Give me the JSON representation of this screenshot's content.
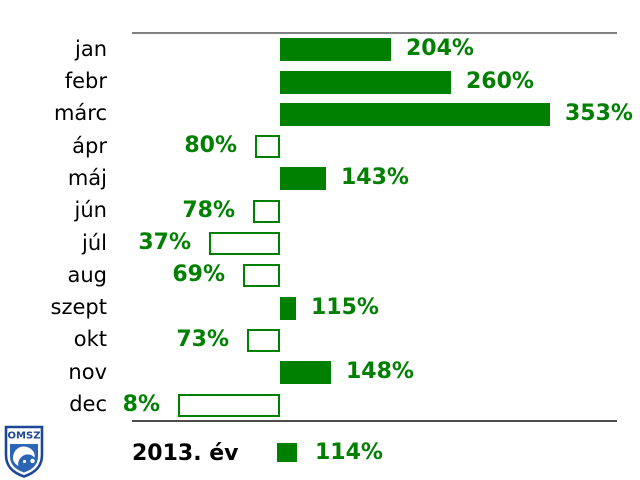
{
  "chart_data": {
    "type": "bar",
    "orientation": "horizontal",
    "title": "",
    "categories": [
      "jan",
      "febr",
      "márc",
      "ápr",
      "máj",
      "jún",
      "júl",
      "aug",
      "szept",
      "okt",
      "nov",
      "dec"
    ],
    "values": [
      204,
      260,
      353,
      80,
      143,
      78,
      37,
      69,
      115,
      73,
      148,
      8
    ],
    "value_labels": [
      "204%",
      "260%",
      "353%",
      "80%",
      "143%",
      "78%",
      "37%",
      "69%",
      "115%",
      "73%",
      "148%",
      "8%"
    ],
    "baseline_value": 100,
    "bar_style_rule": "values >= 100 drawn as filled bars to the right of baseline; values < 100 drawn as outlined bars to the left of baseline",
    "legend": {
      "label": "2013. év",
      "value": 114,
      "value_label": "114%"
    },
    "axis": {
      "gridlines": false,
      "top_rule": true,
      "bottom_rule": true
    }
  },
  "colors": {
    "bar_fill": "#008000",
    "bar_outline": "#008000",
    "value_text": "#008000",
    "category_text": "#000000",
    "axis_top": "#808080",
    "axis_bottom": "#4d4d4d",
    "logo_blue": "#2b66b5",
    "logo_dark_blue": "#1c4798"
  },
  "logo": {
    "text": "OMSZ"
  }
}
